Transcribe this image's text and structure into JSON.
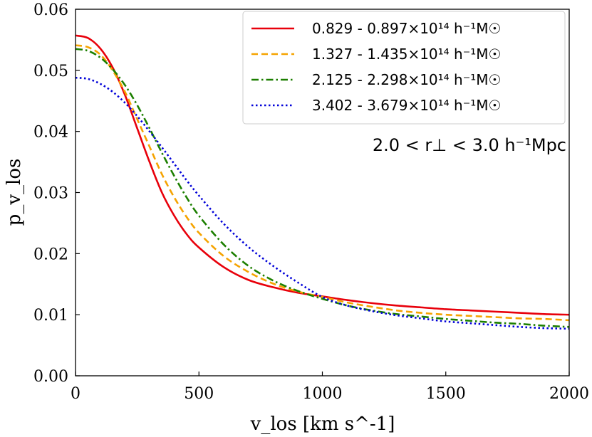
{
  "chart_data": {
    "type": "line",
    "xlabel": "v_los [km s^-1]",
    "ylabel": "p_v_los",
    "xlim": [
      0,
      2000
    ],
    "ylim": [
      0,
      0.06
    ],
    "xticks": [
      0,
      500,
      1000,
      1500,
      2000
    ],
    "yticks": [
      0.0,
      0.01,
      0.02,
      0.03,
      0.04,
      0.05,
      0.06
    ],
    "xtick_labels": [
      "0",
      "500",
      "1000",
      "1500",
      "2000"
    ],
    "ytick_labels": [
      "0.00",
      "0.01",
      "0.02",
      "0.03",
      "0.04",
      "0.05",
      "0.06"
    ],
    "grid": false,
    "legend_position": "top-right",
    "annotation": "2.0 < r⊥ < 3.0 h⁻¹Mpc",
    "series": [
      {
        "name": "0.829 - 0.897×10¹⁴ h⁻¹M☉",
        "color": "#e8000b",
        "style": "solid",
        "x": [
          0,
          50,
          100,
          150,
          200,
          250,
          300,
          350,
          400,
          450,
          500,
          600,
          700,
          800,
          900,
          1000,
          1100,
          1200,
          1300,
          1400,
          1500,
          1600,
          1700,
          1800,
          1900,
          2000
        ],
        "y": [
          0.0557,
          0.0553,
          0.0536,
          0.0505,
          0.046,
          0.0405,
          0.035,
          0.03,
          0.0262,
          0.0232,
          0.021,
          0.0178,
          0.0157,
          0.0145,
          0.0136,
          0.013,
          0.0124,
          0.0119,
          0.0115,
          0.0112,
          0.0109,
          0.0107,
          0.0105,
          0.0103,
          0.0101,
          0.01
        ]
      },
      {
        "name": "1.327 - 1.435×10¹⁴ h⁻¹M☉",
        "color": "#f5a300",
        "style": "dashed",
        "x": [
          0,
          50,
          100,
          150,
          200,
          250,
          300,
          350,
          400,
          450,
          500,
          600,
          700,
          800,
          900,
          1000,
          1100,
          1200,
          1300,
          1400,
          1500,
          1600,
          1700,
          1800,
          1900,
          2000
        ],
        "y": [
          0.0541,
          0.0538,
          0.0526,
          0.05,
          0.0465,
          0.042,
          0.0375,
          0.033,
          0.0292,
          0.026,
          0.0234,
          0.0196,
          0.017,
          0.0151,
          0.0138,
          0.0129,
          0.012,
          0.0113,
          0.0107,
          0.0103,
          0.01,
          0.0098,
          0.0096,
          0.0094,
          0.0093,
          0.0091
        ]
      },
      {
        "name": "2.125 - 2.298×10¹⁴ h⁻¹M☉",
        "color": "#1c7f00",
        "style": "dashdot",
        "x": [
          0,
          50,
          100,
          150,
          200,
          250,
          300,
          350,
          400,
          450,
          500,
          600,
          700,
          800,
          900,
          1000,
          1100,
          1200,
          1300,
          1400,
          1500,
          1600,
          1700,
          1800,
          1900,
          2000
        ],
        "y": [
          0.0535,
          0.0532,
          0.0521,
          0.0502,
          0.0476,
          0.0443,
          0.0405,
          0.0365,
          0.0327,
          0.0292,
          0.0262,
          0.0215,
          0.018,
          0.0156,
          0.0139,
          0.0126,
          0.0115,
          0.0107,
          0.0101,
          0.0097,
          0.0093,
          0.009,
          0.0087,
          0.0085,
          0.0082,
          0.008
        ]
      },
      {
        "name": "3.402 - 3.679×10¹⁴ h⁻¹M☉",
        "color": "#0000d8",
        "style": "dotted",
        "x": [
          0,
          50,
          100,
          150,
          200,
          250,
          300,
          350,
          400,
          450,
          500,
          600,
          700,
          800,
          900,
          1000,
          1100,
          1200,
          1300,
          1400,
          1500,
          1600,
          1700,
          1800,
          1900,
          2000
        ],
        "y": [
          0.0488,
          0.0486,
          0.0478,
          0.0465,
          0.0447,
          0.0425,
          0.04,
          0.0374,
          0.0347,
          0.032,
          0.0295,
          0.0249,
          0.0211,
          0.018,
          0.0153,
          0.0129,
          0.0115,
          0.0106,
          0.0099,
          0.0094,
          0.0089,
          0.0086,
          0.0083,
          0.008,
          0.0078,
          0.0077
        ]
      }
    ]
  }
}
